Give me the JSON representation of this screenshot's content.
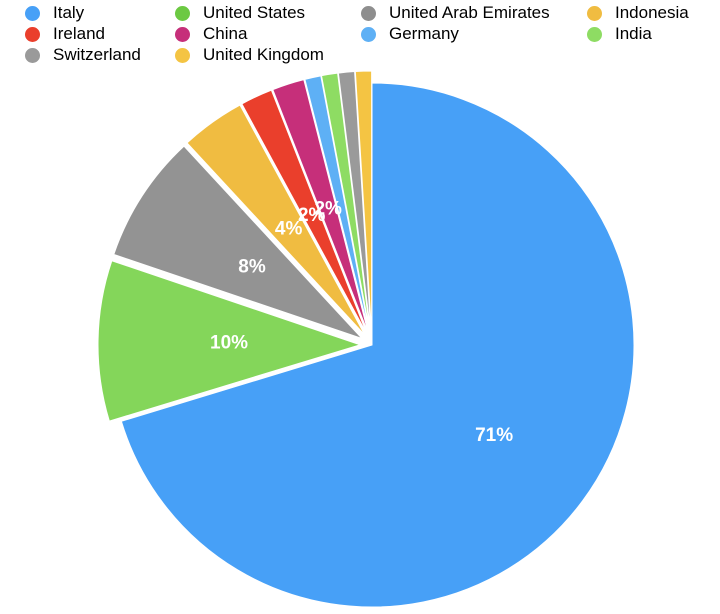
{
  "chart_data": {
    "type": "pie",
    "legend_position": "top",
    "series": [
      {
        "name": "Italy",
        "value": 71,
        "label": "71%",
        "color": "#47a0f7",
        "exploded": false
      },
      {
        "name": "United States",
        "value": 10,
        "label": "10%",
        "color": "#84d65a",
        "exploded": true
      },
      {
        "name": "Switzerland",
        "value": 8,
        "label": "8%",
        "color": "#939393",
        "exploded": true
      },
      {
        "name": "Indonesia",
        "value": 4,
        "label": "4%",
        "color": "#f0bc41",
        "exploded": true
      },
      {
        "name": "Ireland",
        "value": 2,
        "label": "2%",
        "color": "#ea3f2c",
        "exploded": true
      },
      {
        "name": "China",
        "value": 2,
        "label": "2%",
        "color": "#c62f7a",
        "exploded": true
      },
      {
        "name": "Germany",
        "value": 1,
        "label": "",
        "color": "#5eb0f5",
        "exploded": true
      },
      {
        "name": "India",
        "value": 1,
        "label": "",
        "color": "#8edc63",
        "exploded": true
      },
      {
        "name": "United Arab Emirates",
        "value": 1,
        "label": "",
        "color": "#9a9a9a",
        "exploded": true
      },
      {
        "name": "United Kingdom",
        "value": 1,
        "label": "",
        "color": "#f4c443",
        "exploded": true
      }
    ],
    "legend": [
      {
        "name": "Italy",
        "color": "#47a0f7"
      },
      {
        "name": "Ireland",
        "color": "#ea3f2c"
      },
      {
        "name": "Switzerland",
        "color": "#9a9a9a"
      },
      {
        "name": "United States",
        "color": "#6cc942"
      },
      {
        "name": "China",
        "color": "#c62f7a"
      },
      {
        "name": "United Kingdom",
        "color": "#f4c443"
      },
      {
        "name": "United Arab Emirates",
        "color": "#8e8e8e"
      },
      {
        "name": "Germany",
        "color": "#5eb0f5"
      },
      {
        "name": "Indonesia",
        "color": "#f0bc41"
      },
      {
        "name": "India",
        "color": "#8edc63"
      }
    ]
  }
}
